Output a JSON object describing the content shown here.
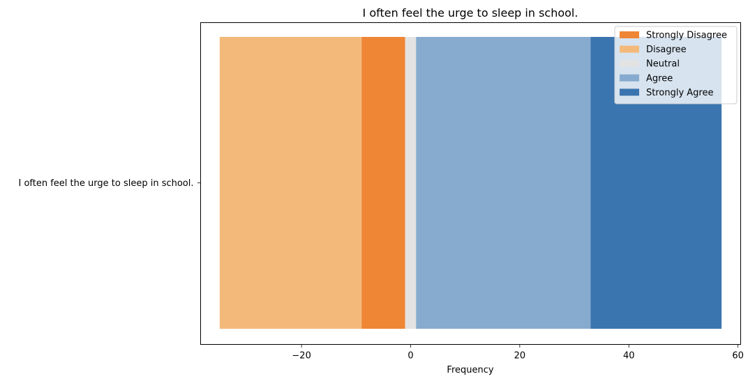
{
  "chart_data": {
    "type": "bar",
    "orientation": "horizontal",
    "stacked": true,
    "diverging": true,
    "title": "I often feel the urge to sleep in school.",
    "xlabel": "Frequency",
    "ylabel": "",
    "categories": [
      "I often feel the urge to sleep in school."
    ],
    "xlim": [
      -38.5,
      60.5
    ],
    "xticks": [
      -20,
      0,
      20,
      40,
      60
    ],
    "xtick_labels": [
      "−20",
      "0",
      "20",
      "40",
      "60"
    ],
    "grid": false,
    "legend_position": "top-right",
    "legend": [
      "Strongly Disagree",
      "Disagree",
      "Neutral",
      "Agree",
      "Strongly Agree"
    ],
    "series": [
      {
        "name": "Strongly Disagree",
        "color": "#ef8636",
        "segments": [
          {
            "start": -9,
            "end": -1
          }
        ],
        "value": 8
      },
      {
        "name": "Disagree",
        "color": "#f3b97a",
        "segments": [
          {
            "start": -35,
            "end": -9
          }
        ],
        "value": 26
      },
      {
        "name": "Neutral",
        "color": "#e3e3e3",
        "segments": [
          {
            "start": -1,
            "end": 1
          }
        ],
        "value": 2
      },
      {
        "name": "Agree",
        "color": "#86abce",
        "segments": [
          {
            "start": 1,
            "end": 33
          }
        ],
        "value": 32
      },
      {
        "name": "Strongly Agree",
        "color": "#3b75af",
        "segments": [
          {
            "start": 33,
            "end": 57
          }
        ],
        "value": 24
      }
    ]
  }
}
